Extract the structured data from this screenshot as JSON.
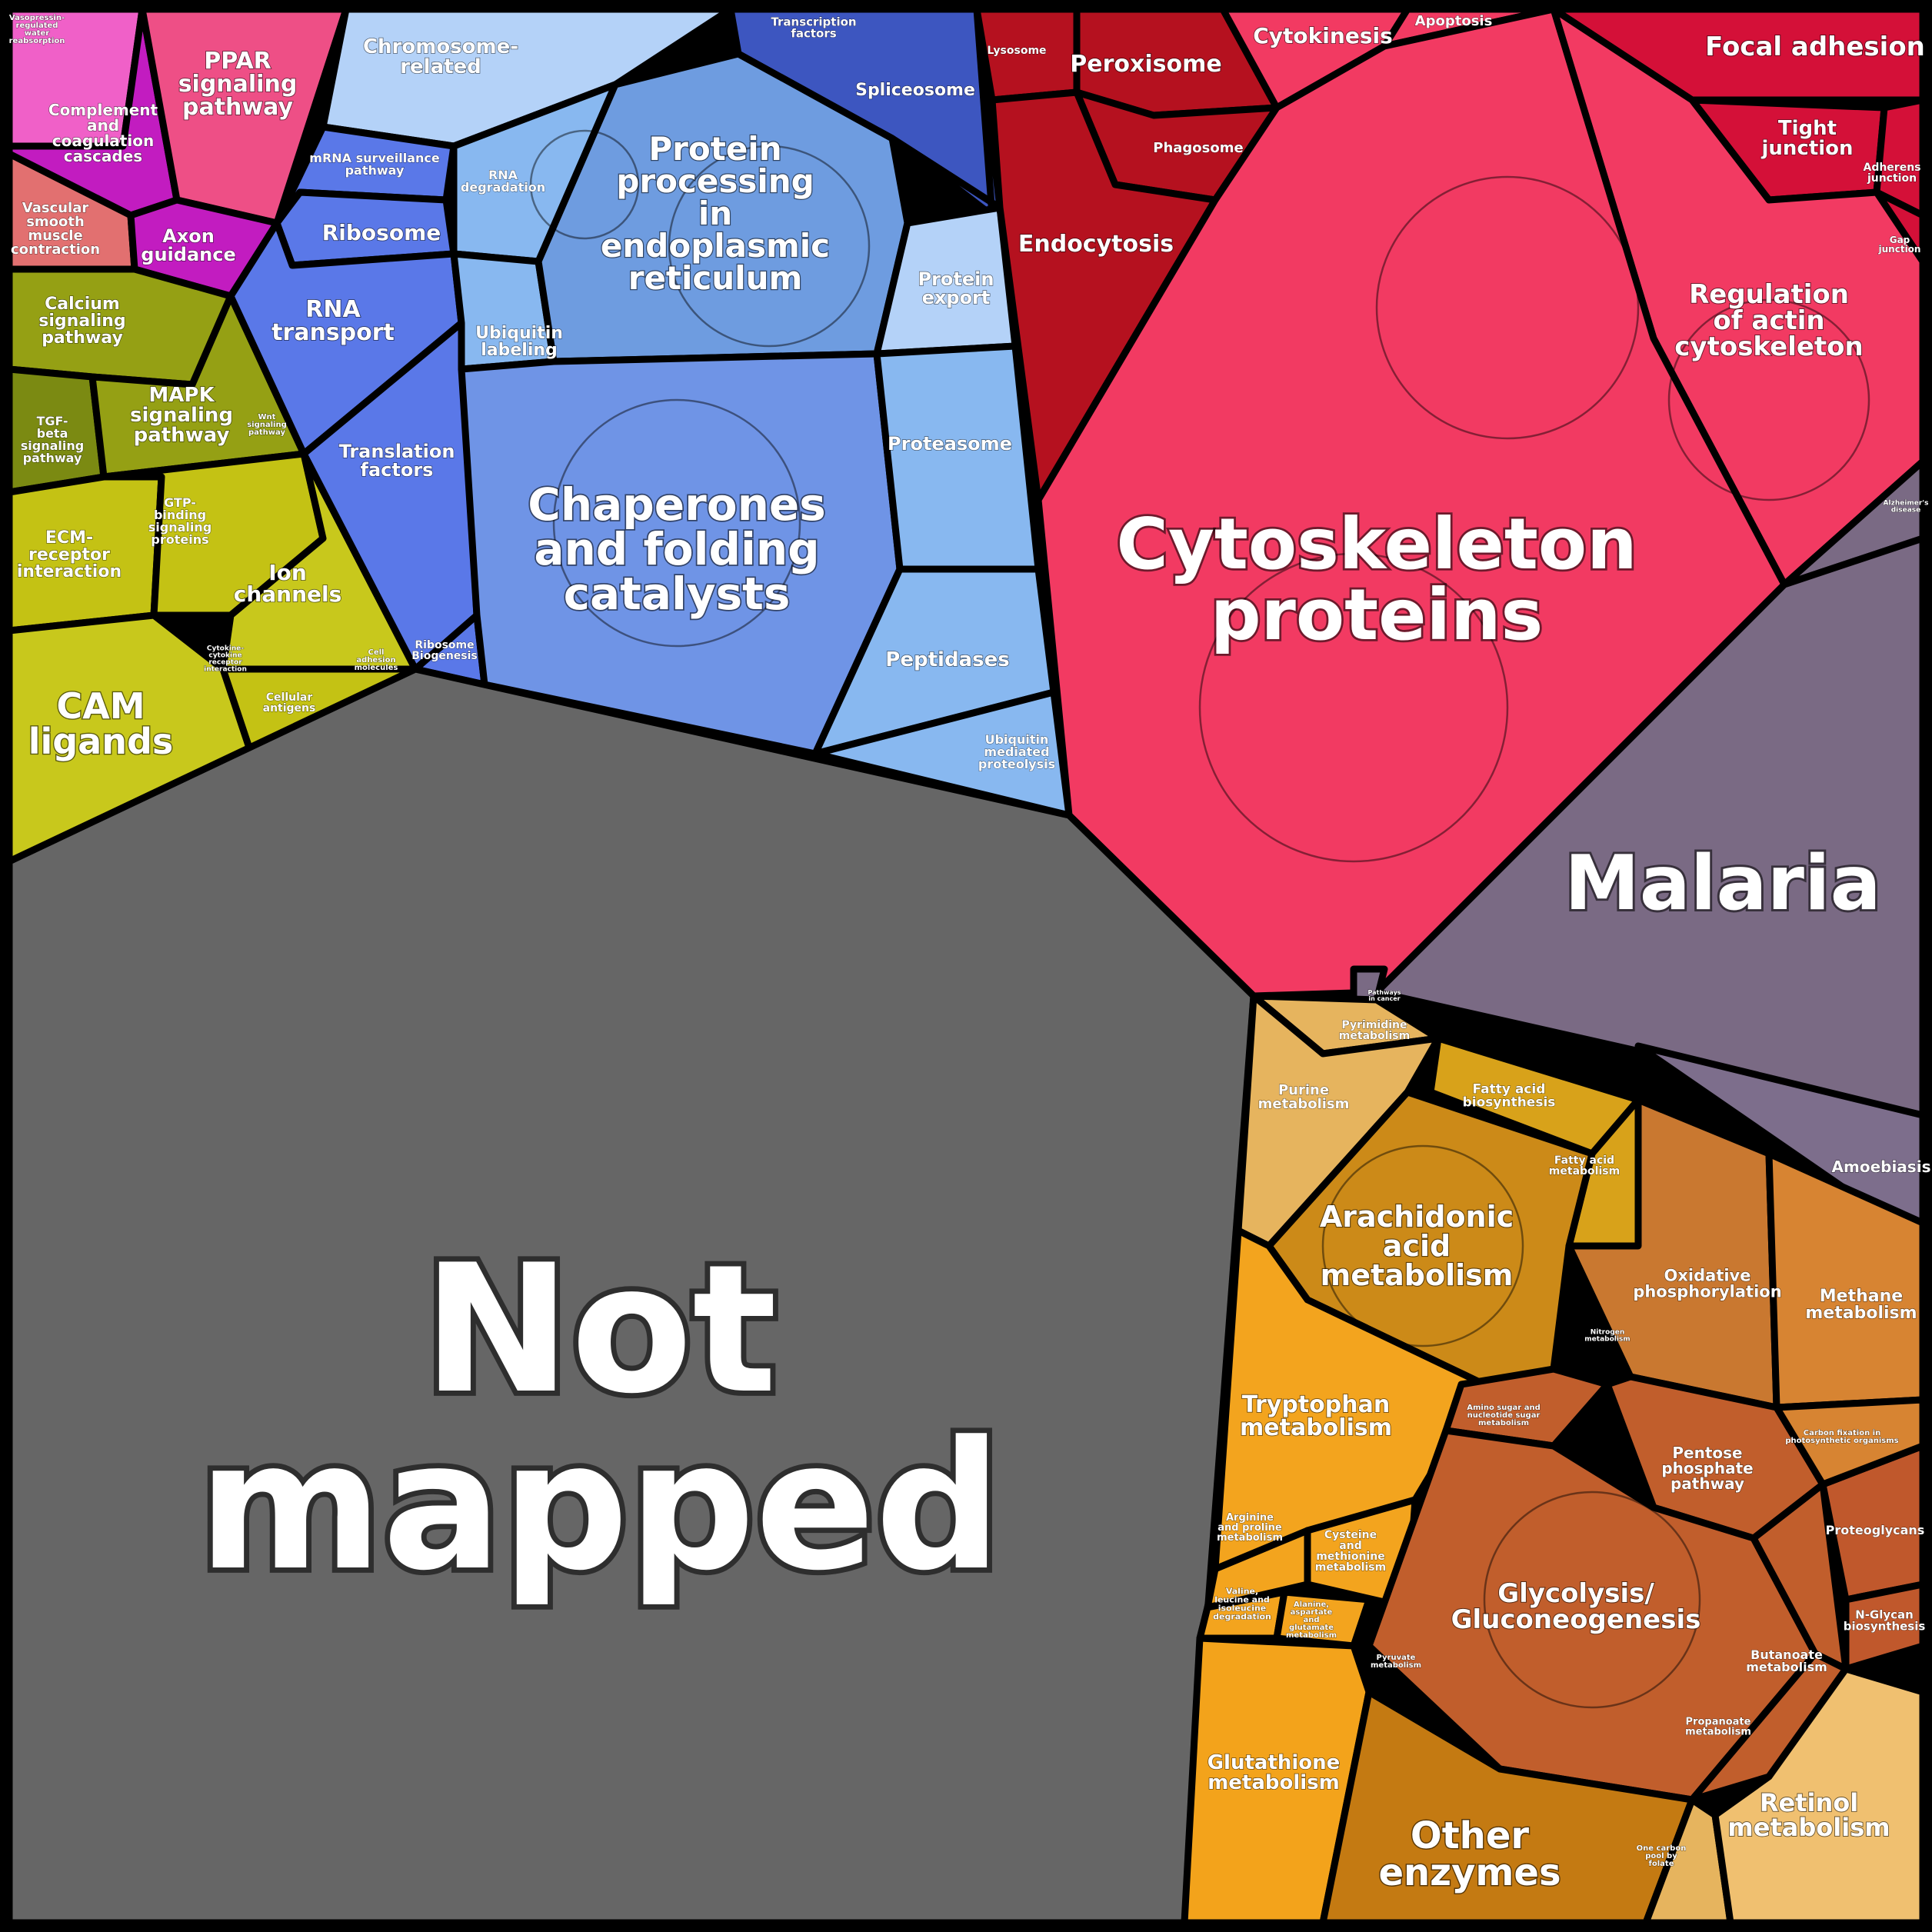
{
  "colors": {
    "frame": "#000000",
    "not_mapped": "#666666",
    "cytoskeleton": "#f23a62",
    "endocytosis": "#b5111f",
    "focal_adhesion": "#d41038",
    "malaria": "#7a6a84",
    "chaperones": "#6f94e6",
    "protein_processing": "#6e9ce0",
    "translation": "#5a78e8",
    "spliceosome": "#3d56c0",
    "chromosome": "#b4d2f8",
    "light_blue": "#88b8f0",
    "ppar": "#ee4f86",
    "complement": "#c21cc0",
    "vasopressin": "#f060c8",
    "vascular": "#e27070",
    "calcium": "#95a014",
    "tgf": "#7b8a12",
    "ecm": "#c4c214",
    "cam": "#c8c81c",
    "purine": "#e6b45e",
    "fatty_acid": "#d8a21a",
    "arachidonic": "#cc8a18",
    "oxidative": "#c97830",
    "methane": "#d78432",
    "tryptophan": "#f3a41e",
    "glycolysis": "#c15e2c",
    "glutathione": "#f3a31b",
    "other_enzymes": "#c47a12",
    "retinol": "#f0c070",
    "proteoglycans": "#c0582c",
    "amoebiasis": "#7d6e8c"
  },
  "labels": {
    "not_mapped": "Not mapped",
    "cytoskeleton_proteins": "Cytoskeleton proteins",
    "malaria": "Malaria",
    "chaperones": "Chaperones and folding catalysts",
    "protein_processing": "Protein processing in endoplasmic reticulum",
    "focal_adhesion": "Focal adhesion",
    "regulation_actin": "Regulation of actin cytoskeleton",
    "tight_junction": "Tight junction",
    "adherens_junction": "Adherens junction",
    "gap_junction": "Gap junction",
    "peroxisome": "Peroxisome",
    "cytokinesis": "Cytokinesis",
    "apoptosis": "Apoptosis",
    "lysosome": "Lysosome",
    "phagosome": "Phagosome",
    "endocytosis": "Endocytosis",
    "alzheimers": "Alzheimer's disease",
    "pathways_cancer": "Pathways in cancer",
    "amoebiasis": "Amoebiasis",
    "transcription_factors": "Transcription factors",
    "spliceosome": "Spliceosome",
    "chromosome_related": "Chromosome-related",
    "rna_degradation": "RNA degradation",
    "ubiquitin_labeling": "Ubiquitin labeling",
    "protein_export": "Protein export",
    "proteasome": "Proteasome",
    "peptidases": "Peptidases",
    "ubiquitin_proteolysis": "Ubiquitin mediated proteolysis",
    "mrna_surveillance": "mRNA surveillance pathway",
    "ribosome": "Ribosome",
    "rna_transport": "RNA transport",
    "translation_factors": "Translation factors",
    "ribosome_biogenesis": "Ribosome Biogenesis",
    "vasopressin": "Vasopressin-regulated water reabsorption",
    "ppar": "PPAR signaling pathway",
    "complement": "Complement and coagulation cascades",
    "vascular": "Vascular smooth muscle contraction",
    "axon_guidance": "Axon guidance",
    "calcium": "Calcium signaling pathway",
    "mapk": "MAPK signaling pathway",
    "tgf_beta": "TGF-beta signaling pathway",
    "wnt": "Wnt signaling pathway",
    "gtp_binding": "GTP-binding signaling proteins",
    "ecm_receptor": "ECM-receptor interaction",
    "ion_channels": "Ion channels",
    "cam_ligands": "CAM ligands",
    "cytokine_receptor": "Cytokine-cytokine receptor interaction",
    "cell_adhesion": "Cell adhesion molecules",
    "cellular_antigens": "Cellular antigens",
    "pyrimidine": "Pyrimidine metabolism",
    "purine": "Purine metabolism",
    "fatty_acid_biosynthesis": "Fatty acid biosynthesis",
    "fatty_acid_metabolism": "Fatty acid metabolism",
    "arachidonic": "Arachidonic acid metabolism",
    "oxidative": "Oxidative phosphorylation",
    "methane": "Methane metabolism",
    "nitrogen": "Nitrogen metabolism",
    "tryptophan": "Tryptophan metabolism",
    "arginine_proline": "Arginine and proline metabolism",
    "cysteine_methionine": "Cysteine and methionine metabolism",
    "valine": "Valine, leucine and isoleucine degradation",
    "alanine": "Alanine, aspartate and glutamate metabolism",
    "amino_sugar": "Amino sugar and nucleotide sugar metabolism",
    "pentose": "Pentose phosphate pathway",
    "glycolysis": "Glycolysis/ Gluconeogenesis",
    "butanoate": "Butanoate metabolism",
    "propanoate": "Propanoate metabolism",
    "pyruvate": "Pyruvate metabolism",
    "proteoglycans": "Proteoglycans",
    "n_glycan": "N-Glycan biosynthesis",
    "carbon_fixation": "Carbon fixation in photosynthetic organisms",
    "glutathione": "Glutathione metabolism",
    "other_enzymes": "Other enzymes",
    "retinol": "Retinol metabolism",
    "one_carbon": "One carbon pool by folate"
  }
}
